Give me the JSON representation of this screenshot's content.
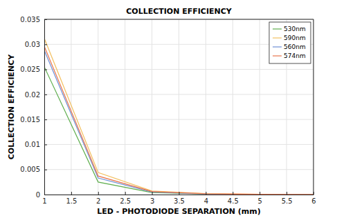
{
  "chart_data": {
    "type": "line",
    "title": "COLLECTION EFFICIENCY",
    "x_label": "LED - PHOTODIODE SEPARATION (mm)",
    "y_label": "COLLECTION EFFICIENCY",
    "x": [
      1,
      2,
      3,
      4,
      5,
      6
    ],
    "series": [
      {
        "name": "530nm",
        "color": "#5fae4e",
        "values": [
          0.0255,
          0.0025,
          0.0004,
          0.0001,
          2e-05,
          0.0
        ]
      },
      {
        "name": "590nm",
        "color": "#f3c061",
        "values": [
          0.0312,
          0.0044,
          0.0007,
          0.0002,
          5e-05,
          1e-05
        ]
      },
      {
        "name": "560nm",
        "color": "#6d8fd6",
        "values": [
          0.0288,
          0.0033,
          0.0005,
          0.0001,
          3e-05,
          0.0
        ]
      },
      {
        "name": "574nm",
        "color": "#e8744c",
        "values": [
          0.0296,
          0.0037,
          0.0006,
          0.00015,
          4e-05,
          1e-05
        ]
      }
    ],
    "xlim": [
      1,
      6
    ],
    "xticks": [
      1,
      1.5,
      2,
      2.5,
      3,
      3.5,
      4,
      4.5,
      5,
      5.5,
      6
    ],
    "ylim": [
      0,
      0.035
    ],
    "yticks": [
      0,
      0.005,
      0.01,
      0.015,
      0.02,
      0.025,
      0.03,
      0.035
    ],
    "grid": true,
    "legend": "top-right"
  }
}
